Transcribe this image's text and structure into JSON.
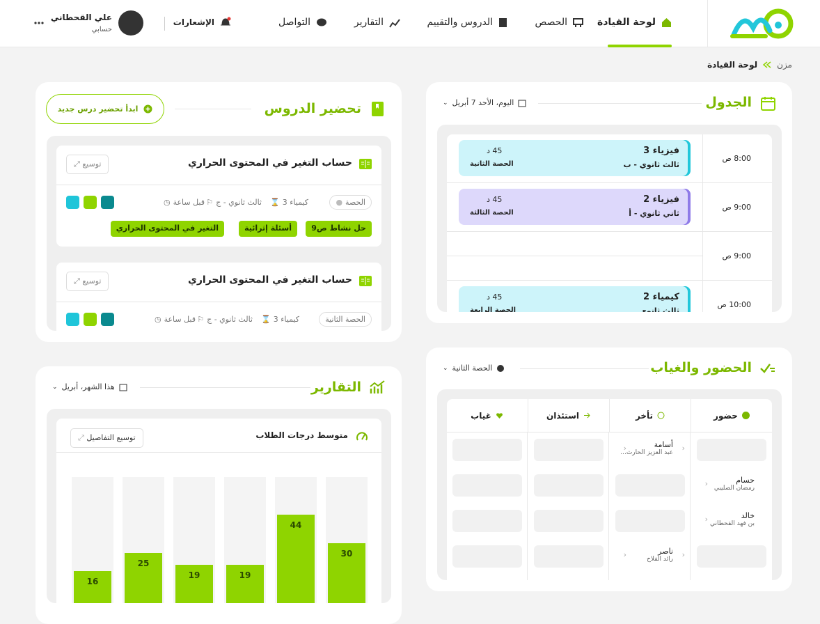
{
  "header": {
    "nav": [
      "لوحة القيادة",
      "الحصص",
      "الدروس والتقييم",
      "التقارير",
      "التواصل"
    ],
    "notifications": "الإشعارات",
    "user": {
      "name": "علي القحطاني",
      "account": "حسابي"
    }
  },
  "breadcrumb": [
    "مزن",
    "لوحة القيادة"
  ],
  "schedule": {
    "title": "الجدول",
    "date": "اليوم، الأحد 7 أبريل",
    "times": [
      "8:00 ص",
      "9:00 ص",
      "9:00 ص",
      "10:00 ص"
    ],
    "events": [
      {
        "subject": "فيزياء 3",
        "class": "ثالث ثانوي - ب",
        "duration": "45 د",
        "period": "الحصة الثانية"
      },
      {
        "subject": "فيزياء 2",
        "class": "ثاني ثانوي - أ",
        "duration": "45 د",
        "period": "الحصة الثالثة"
      },
      {
        "subject": "كيمياء 2",
        "class": "ثالث ثانوي",
        "duration": "45 د",
        "period": "الحصة الرابعة"
      }
    ]
  },
  "lessons": {
    "title": "تحضير الدروس",
    "new_button": "ابدأ تحضير درس جديد",
    "items": [
      {
        "title": "حساب التغير في المحتوى الحراري",
        "expand": "توسيع",
        "period": "الحصة",
        "subject": "كيمياء 3",
        "class": "ثالث ثانوي - ج",
        "time": "قبل ساعة",
        "tags": [
          "حل نشاط ص9",
          "أسئلة إثرائية",
          "التغير في المحتوى الحراري"
        ]
      },
      {
        "title": "حساب التغير في المحتوى الحراري",
        "expand": "توسيع",
        "period": "الحصة الثانية",
        "subject": "كيمياء 3",
        "class": "ثالث ثانوي - ج",
        "time": "قبل ساعة"
      }
    ]
  },
  "attendance": {
    "title": "الحضور والغياب",
    "period": "الحصة الثانية",
    "columns": [
      "حضور",
      "تأخر",
      "استئذان",
      "غياب"
    ],
    "students": [
      {
        "name": "أسامة",
        "family": "عبد العزيز الحارث..."
      },
      {
        "name": "حسام",
        "family": "رمضان الصليبي"
      },
      {
        "name": "خالد",
        "family": "بن فهد القحطاني"
      },
      {
        "name": "ناصر",
        "family": "رائد الفلاح"
      }
    ]
  },
  "reports": {
    "title": "التقارير",
    "period": "هذا الشهر، أبريل",
    "expand": "توسيع التفاصيل",
    "chart_data": {
      "type": "bar",
      "title": "متوسط درجات الطلاب",
      "values": [
        30,
        44,
        19,
        19,
        25,
        16
      ],
      "color": "#8fd400"
    }
  }
}
